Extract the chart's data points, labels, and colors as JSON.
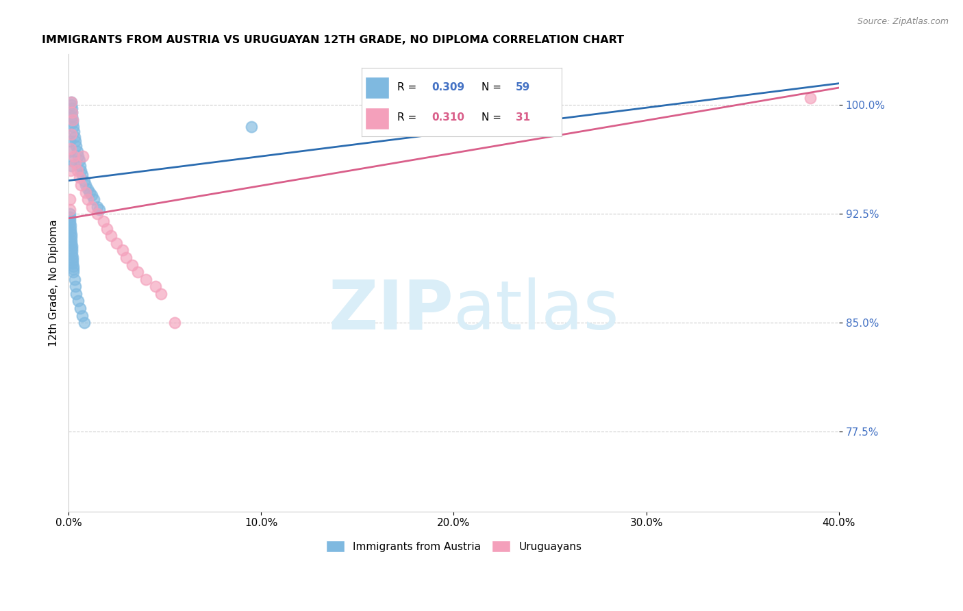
{
  "title": "IMMIGRANTS FROM AUSTRIA VS URUGUAYAN 12TH GRADE, NO DIPLOMA CORRELATION CHART",
  "source": "Source: ZipAtlas.com",
  "ylabel": "12th Grade, No Diploma",
  "xlim": [
    0.0,
    40.0
  ],
  "ylim": [
    72.0,
    103.5
  ],
  "ytick_vals": [
    77.5,
    85.0,
    92.5,
    100.0
  ],
  "xtick_vals": [
    0.0,
    10.0,
    20.0,
    30.0,
    40.0
  ],
  "blue_R": "0.309",
  "blue_N": "59",
  "pink_R": "0.310",
  "pink_N": "31",
  "blue_color": "#7fb9e0",
  "pink_color": "#f4a0bb",
  "blue_line_color": "#2b6cb0",
  "pink_line_color": "#d95f8a",
  "watermark_zip": "ZIP",
  "watermark_atlas": "atlas",
  "watermark_color": "#daeef8",
  "blue_line_x": [
    0.0,
    40.0
  ],
  "blue_line_y": [
    94.8,
    101.5
  ],
  "pink_line_x": [
    0.0,
    40.0
  ],
  "pink_line_y": [
    92.2,
    101.2
  ],
  "blue_scatter_x": [
    0.05,
    0.08,
    0.1,
    0.12,
    0.13,
    0.15,
    0.16,
    0.17,
    0.18,
    0.2,
    0.22,
    0.25,
    0.28,
    0.3,
    0.35,
    0.4,
    0.45,
    0.5,
    0.55,
    0.6,
    0.65,
    0.7,
    0.8,
    0.9,
    1.0,
    1.1,
    1.2,
    1.3,
    1.5,
    1.6,
    0.05,
    0.06,
    0.07,
    0.08,
    0.09,
    0.1,
    0.11,
    0.12,
    0.13,
    0.14,
    0.15,
    0.16,
    0.17,
    0.18,
    0.19,
    0.2,
    0.21,
    0.22,
    0.23,
    0.24,
    0.25,
    0.3,
    0.35,
    0.4,
    0.5,
    0.6,
    0.7,
    0.8,
    9.5
  ],
  "blue_scatter_y": [
    97.5,
    96.8,
    96.2,
    95.8,
    100.0,
    100.2,
    99.8,
    99.5,
    99.2,
    99.0,
    98.8,
    98.5,
    98.2,
    97.8,
    97.5,
    97.2,
    96.8,
    96.5,
    96.2,
    95.8,
    95.5,
    95.2,
    94.8,
    94.5,
    94.2,
    94.0,
    93.8,
    93.5,
    93.0,
    92.8,
    92.5,
    92.3,
    92.1,
    91.9,
    91.7,
    91.5,
    91.3,
    91.1,
    90.9,
    90.7,
    90.5,
    90.3,
    90.1,
    89.9,
    89.7,
    89.5,
    89.3,
    89.1,
    88.9,
    88.7,
    88.5,
    88.0,
    87.5,
    87.0,
    86.5,
    86.0,
    85.5,
    85.0,
    98.5
  ],
  "pink_scatter_x": [
    0.05,
    0.07,
    0.09,
    0.11,
    0.13,
    0.15,
    0.18,
    0.22,
    0.28,
    0.35,
    0.45,
    0.55,
    0.65,
    0.75,
    0.9,
    1.0,
    1.2,
    1.5,
    1.8,
    2.0,
    2.2,
    2.5,
    2.8,
    3.0,
    3.3,
    3.6,
    4.0,
    4.5,
    4.8,
    5.5,
    38.5
  ],
  "pink_scatter_y": [
    92.8,
    93.5,
    95.5,
    97.0,
    98.0,
    100.2,
    99.5,
    99.0,
    96.5,
    96.0,
    95.5,
    95.0,
    94.5,
    96.5,
    94.0,
    93.5,
    93.0,
    92.5,
    92.0,
    91.5,
    91.0,
    90.5,
    90.0,
    89.5,
    89.0,
    88.5,
    88.0,
    87.5,
    87.0,
    85.0,
    100.5
  ]
}
